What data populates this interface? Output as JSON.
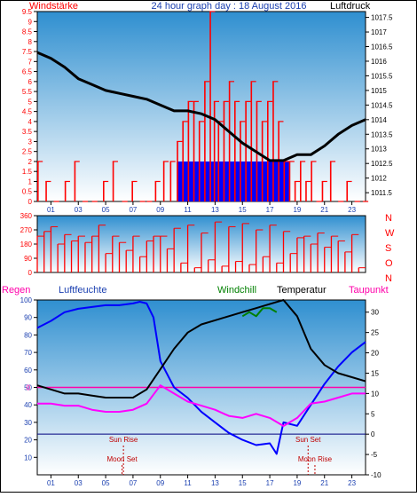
{
  "header": {
    "title": "24 hour graph day : 18 August 2016",
    "left_label": "Windstärke",
    "right_label": "Luftdruck"
  },
  "colors": {
    "frame": "#000000",
    "plot_top": "#2f8fd0",
    "plot_bottom": "#ffffff",
    "wind_speed": "#ff0000",
    "wind_gust": "#0000ff",
    "pressure": "#000000",
    "direction": "#ff0000",
    "humidity": "#0000ff",
    "temperature": "#000000",
    "windchill": "#008000",
    "dewpoint": "#ff00ff",
    "zero_line": "#ff00aa",
    "zero_temp_line": "#000080",
    "astro_text": "#c00000"
  },
  "x_ticks": [
    "01",
    "03",
    "05",
    "07",
    "09",
    "11",
    "13",
    "15",
    "17",
    "19",
    "21",
    "23"
  ],
  "chart_data": [
    {
      "type": "bar",
      "name": "wind_and_pressure",
      "title": "24 hour graph day : 18 August 2016",
      "xlabel": "",
      "ylabel": "Windstärke",
      "y2label": "Luftdruck",
      "x_range_hours": [
        0,
        24
      ],
      "ylim": [
        0,
        9.5
      ],
      "y_ticks": [
        "0",
        "0.5",
        "1",
        "1.5",
        "2",
        "2.5",
        "3",
        "3.5",
        "4",
        "4.5",
        "5",
        "5.5",
        "6",
        "6.5",
        "7",
        "7.5",
        "8",
        "8.5",
        "9",
        "9.5"
      ],
      "y2lim": [
        1011.2,
        1017.7
      ],
      "y2_ticks": [
        "1011.5",
        "1012",
        "1012.5",
        "1013",
        "1013.5",
        "1014",
        "1014.5",
        "1015",
        "1015.5",
        "1016",
        "1016.5",
        "1017",
        "1017.5"
      ],
      "series": [
        {
          "key": "wind_speed",
          "hours": [
            0.0,
            0.6,
            1.2,
            2.0,
            2.7,
            3.3,
            4.0,
            4.8,
            5.5,
            6.2,
            6.9,
            7.5,
            8.0,
            8.6,
            9.2,
            9.7,
            10.2,
            10.6,
            11.0,
            11.4,
            11.8,
            12.2,
            12.6,
            12.9,
            13.2,
            13.6,
            14.0,
            14.4,
            14.8,
            15.2,
            15.6,
            16.0,
            16.4,
            16.8,
            17.2,
            17.6,
            18.0,
            18.4,
            18.8,
            19.2,
            19.6,
            20.0,
            20.4,
            20.8,
            21.4,
            22.0,
            22.6,
            23.2,
            23.8
          ],
          "values": [
            2,
            1,
            0,
            1,
            2,
            0,
            0,
            1,
            2,
            0,
            1,
            0,
            0,
            1,
            2,
            2,
            3,
            4,
            5,
            5,
            4,
            6,
            9.5,
            5,
            4,
            5,
            6,
            5,
            4,
            5,
            6,
            5,
            4,
            5,
            6,
            4,
            2,
            2,
            1,
            2,
            1,
            2,
            0,
            1,
            2,
            0,
            1,
            0,
            0
          ]
        },
        {
          "key": "wind_gust",
          "hours": [
            10.2,
            10.6,
            11.0,
            11.4,
            11.8,
            12.2,
            12.6,
            12.9,
            13.2,
            13.6,
            14.0,
            14.4,
            14.8,
            15.2,
            15.6,
            16.0,
            16.4,
            16.8,
            17.2,
            17.6,
            18.0
          ],
          "values": [
            2,
            2,
            2,
            2,
            2,
            2,
            2,
            2,
            2,
            2,
            2,
            2,
            2,
            2,
            2,
            2,
            2,
            2,
            2,
            2,
            2
          ]
        },
        {
          "key": "pressure",
          "hours": [
            0,
            1,
            2,
            3,
            4,
            5,
            6,
            7,
            8,
            9,
            10,
            11,
            12,
            13,
            14,
            15,
            16,
            17,
            18,
            19,
            20,
            21,
            22,
            23,
            24
          ],
          "values": [
            1016.3,
            1016.1,
            1015.8,
            1015.4,
            1015.2,
            1015.0,
            1014.9,
            1014.8,
            1014.7,
            1014.5,
            1014.3,
            1014.3,
            1014.2,
            1014.0,
            1013.6,
            1013.2,
            1012.9,
            1012.6,
            1012.6,
            1012.8,
            1012.8,
            1013.1,
            1013.5,
            1013.8,
            1014.0
          ]
        }
      ]
    },
    {
      "type": "bar",
      "name": "wind_direction",
      "xlabel": "",
      "ylabel": "",
      "x_range_hours": [
        0,
        24
      ],
      "ylim": [
        0,
        360
      ],
      "y_ticks": [
        "0",
        "90",
        "180",
        "270",
        "360"
      ],
      "compass_labels": [
        "N",
        "W",
        "S",
        "O",
        "N"
      ],
      "series": [
        {
          "key": "direction",
          "hours": [
            0,
            0.5,
            1,
            1.5,
            2,
            2.5,
            3,
            3.5,
            4,
            4.5,
            5,
            5.5,
            6,
            6.5,
            7,
            7.5,
            8,
            8.5,
            9,
            9.5,
            10,
            10.5,
            11,
            11.5,
            12,
            12.5,
            13,
            13.5,
            14,
            14.5,
            15,
            15.5,
            16,
            16.5,
            17,
            17.5,
            18,
            18.5,
            19,
            19.5,
            20,
            20.5,
            21,
            21.5,
            22,
            22.5,
            23,
            23.5
          ],
          "values": [
            230,
            260,
            290,
            180,
            240,
            200,
            230,
            190,
            230,
            300,
            120,
            230,
            190,
            140,
            230,
            100,
            200,
            230,
            230,
            150,
            280,
            60,
            300,
            30,
            250,
            80,
            320,
            40,
            290,
            70,
            310,
            50,
            270,
            100,
            300,
            60,
            260,
            120,
            220,
            230,
            180,
            250,
            160,
            230,
            200,
            130,
            240,
            30
          ]
        }
      ]
    },
    {
      "type": "line",
      "name": "humidity_temperature",
      "xlabel": "",
      "ylabel": "Regen",
      "x_range_hours": [
        0,
        24
      ],
      "ylim": [
        0,
        100
      ],
      "y_ticks": [
        "10",
        "20",
        "30",
        "40",
        "50",
        "60",
        "70",
        "80",
        "90",
        "100"
      ],
      "y2lim": [
        -10,
        33
      ],
      "y2_ticks": [
        "-10",
        "-5",
        "0",
        "5",
        "10",
        "15",
        "20",
        "25",
        "30"
      ],
      "legend": [
        "Regen",
        "Luftfeuchte",
        "Windchill",
        "Temperatur",
        "Taupunkt"
      ],
      "series": [
        {
          "name": "Luftfeuchte",
          "key": "humidity",
          "hours": [
            0,
            1,
            2,
            3,
            4,
            5,
            6,
            7,
            7.5,
            8,
            8.5,
            9,
            10,
            11,
            12,
            13,
            14,
            15,
            16,
            17,
            17.5,
            18,
            19,
            20,
            21,
            22,
            23,
            24
          ],
          "values": [
            84,
            88,
            93,
            95,
            96,
            97,
            97,
            98,
            99,
            98,
            90,
            65,
            50,
            44,
            36,
            30,
            24,
            20,
            17,
            18,
            12,
            30,
            28,
            40,
            52,
            62,
            70,
            76
          ]
        },
        {
          "name": "Temperatur",
          "key": "temperature",
          "hours": [
            0,
            1,
            2,
            3,
            4,
            5,
            6,
            7,
            8,
            9,
            10,
            11,
            12,
            13,
            14,
            15,
            16,
            17,
            18,
            19,
            20,
            21,
            22,
            23,
            24
          ],
          "values": [
            12,
            11,
            10,
            10,
            9.5,
            9,
            9,
            9,
            11,
            16,
            21,
            25,
            27,
            28,
            29,
            30,
            31,
            32,
            33,
            29,
            21,
            17,
            15,
            14,
            13
          ]
        },
        {
          "name": "Windchill",
          "key": "windchill",
          "hours": [
            15,
            15.5,
            16,
            16.5,
            17,
            17.5
          ],
          "values": [
            29,
            30,
            29,
            31,
            31,
            30
          ]
        },
        {
          "name": "Taupunkt",
          "key": "dewpoint",
          "hours": [
            0,
            1,
            2,
            3,
            4,
            5,
            6,
            7,
            8,
            9,
            10,
            11,
            12,
            13,
            14,
            15,
            16,
            17,
            18,
            19,
            20,
            21,
            22,
            23,
            24
          ],
          "values": [
            7.5,
            7.5,
            7,
            7,
            6,
            5.5,
            5.5,
            6,
            7.5,
            12,
            10,
            8,
            7,
            6,
            4.5,
            4,
            5,
            4,
            2,
            4,
            7.5,
            8,
            9,
            10,
            10
          ]
        }
      ],
      "astro": {
        "sun_rise": "Sun Rise",
        "moon_set": "Moon Set",
        "sun_set": "Sun Set",
        "moon_rise": "Moon Rise"
      }
    }
  ]
}
